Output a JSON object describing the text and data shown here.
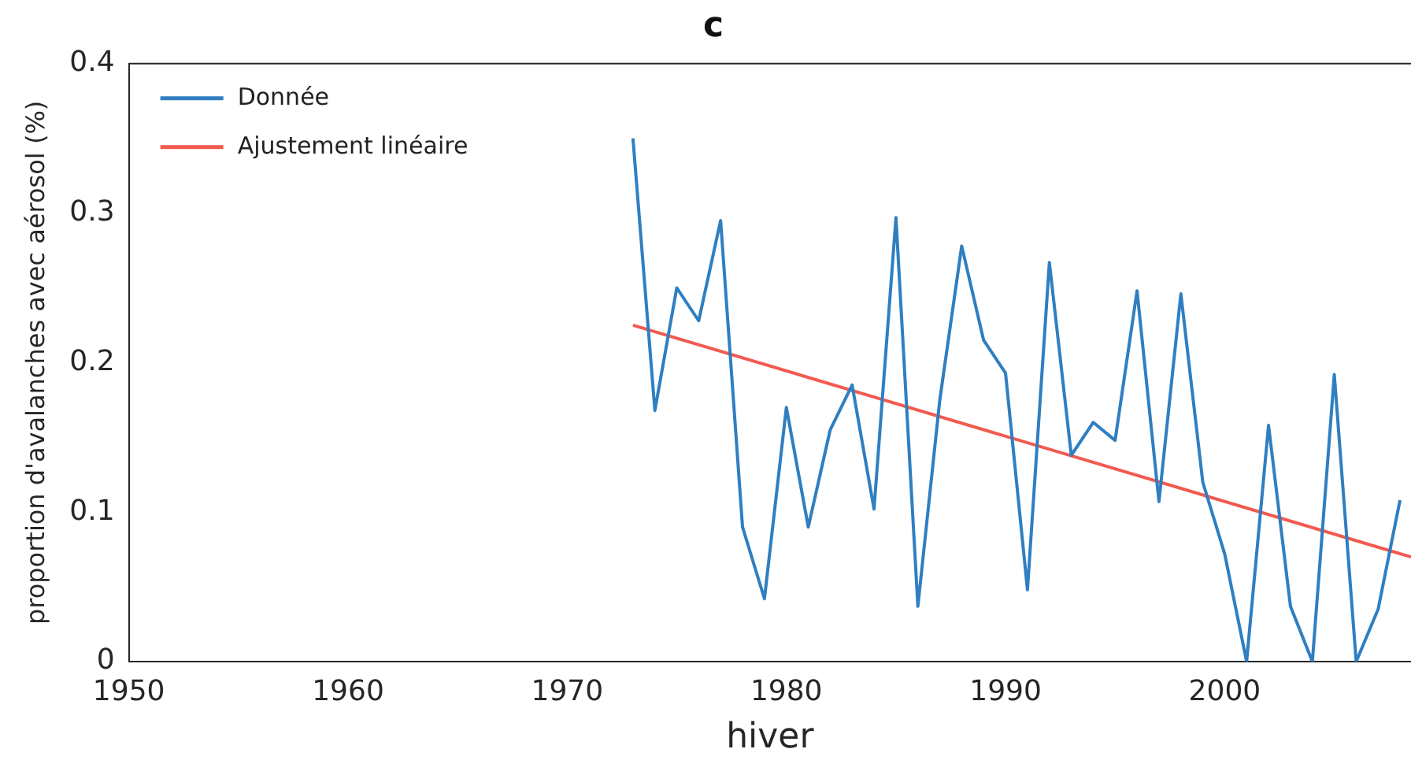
{
  "chart_data": {
    "type": "line",
    "title": "c",
    "xlabel": "hiver",
    "ylabel": "proportion d'avalanches avec aérosol (%)",
    "xlim": [
      1950,
      2008.5
    ],
    "xticks": [
      1950,
      1960,
      1970,
      1980,
      1990,
      2000
    ],
    "ylim": [
      0,
      0.4
    ],
    "yticks": [
      0,
      0.1,
      0.2,
      0.3,
      0.4
    ],
    "grid": false,
    "legend": "top left",
    "marker": "none",
    "line_style": "solid",
    "series": [
      {
        "name": "Donnée",
        "color": "#2f7fc1",
        "x": [
          1973,
          1974,
          1975,
          1976,
          1977,
          1978,
          1979,
          1980,
          1981,
          1982,
          1983,
          1984,
          1985,
          1986,
          1987,
          1988,
          1989,
          1990,
          1991,
          1992,
          1993,
          1994,
          1995,
          1996,
          1997,
          1998,
          1999,
          2000,
          2001,
          2002,
          2003,
          2004,
          2005,
          2006,
          2007,
          2008
        ],
        "values": [
          0.35,
          0.168,
          0.25,
          0.228,
          0.295,
          0.09,
          0.042,
          0.17,
          0.09,
          0.155,
          0.185,
          0.102,
          0.297,
          0.037,
          0.175,
          0.278,
          0.215,
          0.193,
          0.048,
          0.267,
          0.138,
          0.16,
          0.148,
          0.248,
          0.107,
          0.246,
          0.12,
          0.072,
          0.0,
          0.158,
          0.037,
          0.0,
          0.192,
          0.0,
          0.035,
          0.108
        ]
      },
      {
        "name": "Ajustement linéaire",
        "color": "#f25a4f",
        "x": [
          1973,
          2008.5
        ],
        "values": [
          0.225,
          0.07
        ]
      }
    ]
  }
}
